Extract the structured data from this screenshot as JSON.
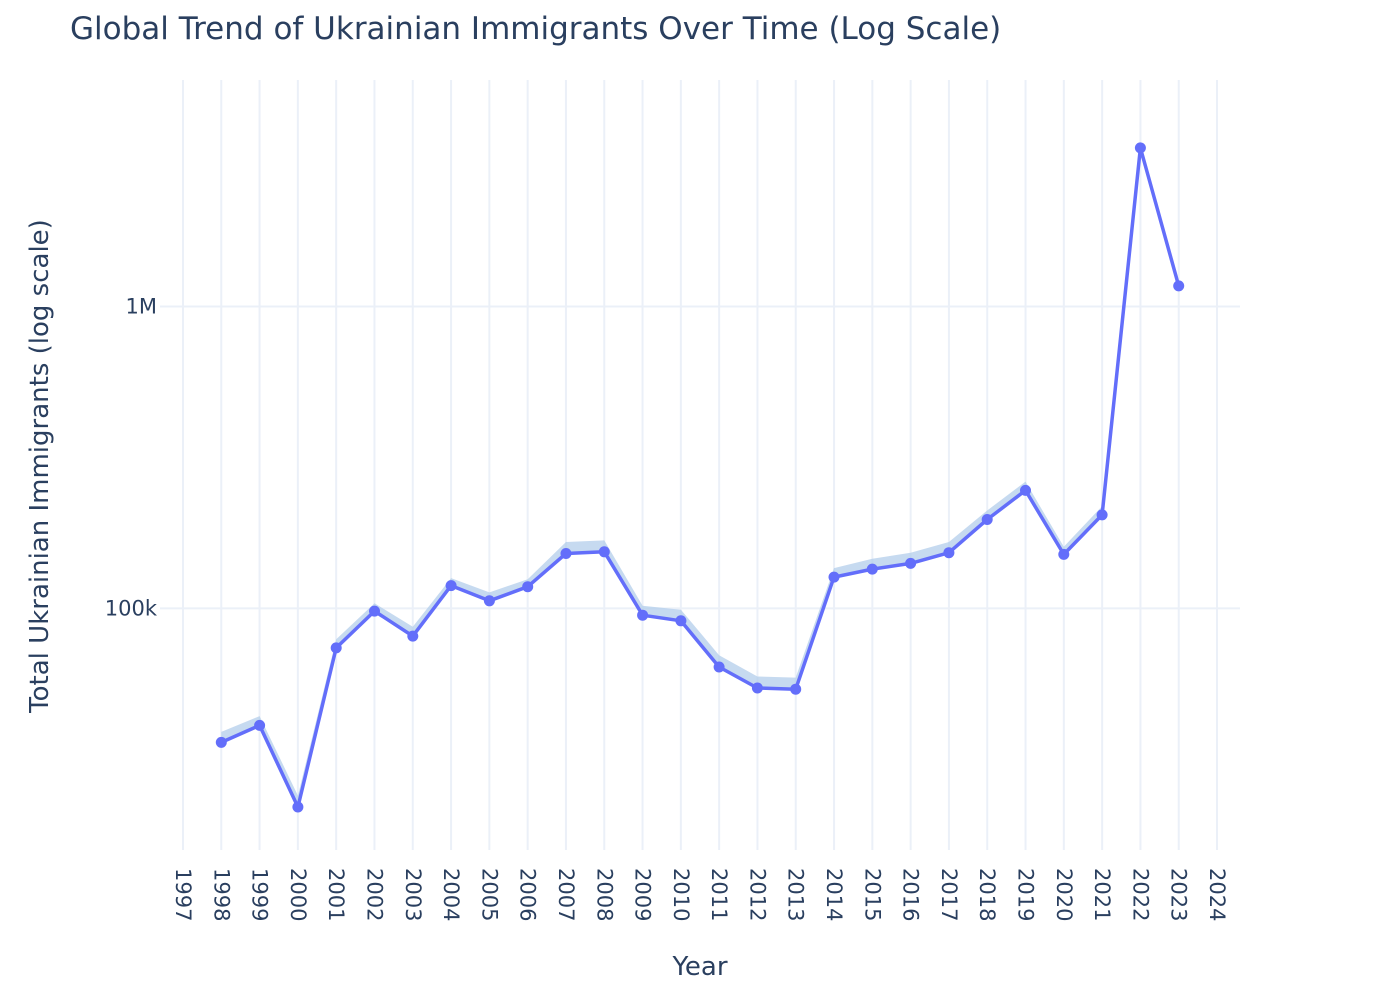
{
  "chart_data": {
    "type": "line",
    "title": "Global Trend of Ukrainian Immigrants Over Time (Log Scale)",
    "xlabel": "Year",
    "ylabel": "Total Ukrainian Immigrants (log scale)",
    "x_ticks": [
      "1997",
      "1998",
      "1999",
      "2000",
      "2001",
      "2002",
      "2003",
      "2004",
      "2005",
      "2006",
      "2007",
      "2008",
      "2009",
      "2010",
      "2011",
      "2012",
      "2013",
      "2014",
      "2015",
      "2016",
      "2017",
      "2018",
      "2019",
      "2020",
      "2021",
      "2022",
      "2023",
      "2024"
    ],
    "y_ticks": [
      {
        "value": 100000,
        "label": "100k"
      },
      {
        "value": 1000000,
        "label": "1M"
      }
    ],
    "y_scale": "log",
    "xlim": [
      1996.4,
      2024.6
    ],
    "ylim_log10": [
      4.2,
      6.75
    ],
    "grid": true,
    "x": [
      1998,
      1999,
      2000,
      2001,
      2002,
      2003,
      2004,
      2005,
      2006,
      2007,
      2008,
      2009,
      2010,
      2011,
      2012,
      2013,
      2014,
      2015,
      2016,
      2017,
      2018,
      2019,
      2020,
      2021,
      2022,
      2023
    ],
    "series": [
      {
        "values": [
          36000,
          41000,
          22000,
          74000,
          98000,
          81000,
          119000,
          106000,
          118000,
          152000,
          154000,
          95000,
          91000,
          64000,
          54500,
          54000,
          127000,
          135000,
          141000,
          153000,
          197000,
          246000,
          151000,
          204000,
          3350000,
          1170000
        ],
        "color": "#636efa"
      }
    ],
    "band": {
      "color": "#aecbea",
      "upper": [
        39000,
        44000,
        24000,
        79000,
        104000,
        87000,
        126000,
        113000,
        125000,
        166000,
        168000,
        102000,
        99000,
        70000,
        59500,
        59000,
        136000,
        146000,
        153000,
        166000,
        211000,
        263000,
        160000,
        218000,
        3350000,
        1170000
      ]
    }
  }
}
